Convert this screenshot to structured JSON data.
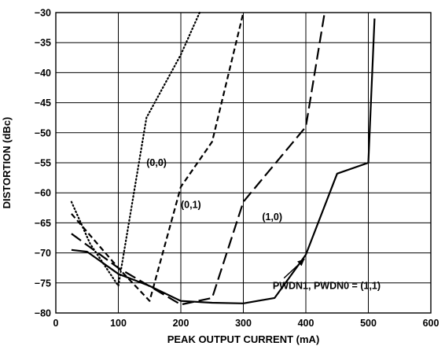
{
  "chart_data": {
    "type": "line",
    "title": "",
    "xlabel": "PEAK OUTPUT CURRENT (mA)",
    "ylabel": "DISTORTION (dBc)",
    "xlim": [
      0,
      600
    ],
    "ylim": [
      -80,
      -30
    ],
    "xticks": [
      0,
      100,
      200,
      300,
      400,
      500,
      600
    ],
    "yticks": [
      -80,
      -75,
      -70,
      -65,
      -60,
      -55,
      -50,
      -45,
      -40,
      -35,
      -30
    ],
    "grid": true,
    "series": [
      {
        "name": "(0,0)",
        "style": "dotted",
        "x": [
          25,
          55,
          100,
          145,
          200,
          230
        ],
        "y": [
          -61.5,
          -68.5,
          -75.5,
          -47.5,
          -37,
          -30
        ]
      },
      {
        "name": "(0,1)",
        "style": "dashed",
        "x": [
          25,
          100,
          150,
          200,
          250,
          300
        ],
        "y": [
          -63.5,
          -72.5,
          -78,
          -59,
          -51.5,
          -30
        ]
      },
      {
        "name": "(1,0)",
        "style": "long-dashed",
        "x": [
          25,
          100,
          200,
          250,
          300,
          400,
          430
        ],
        "y": [
          -66.8,
          -72.5,
          -78.6,
          -77.5,
          -61.5,
          -49,
          -30
        ]
      },
      {
        "name": "PWDN1, PWDN0 = (1,1)",
        "style": "solid",
        "x": [
          25,
          50,
          100,
          150,
          200,
          250,
          300,
          350,
          400,
          450,
          500,
          510
        ],
        "y": [
          -69.5,
          -69.8,
          -73.5,
          -75.5,
          -78,
          -78.3,
          -78.4,
          -77.5,
          -70.3,
          -56.8,
          -55,
          -31
        ]
      }
    ],
    "annotations": [
      {
        "text": "(0,0)",
        "x": 145,
        "y": -55
      },
      {
        "text": "(0,1)",
        "x": 200,
        "y": -62
      },
      {
        "text": "(1,0)",
        "x": 330,
        "y": -64
      },
      {
        "text": "PWDN1, PWDN0 = (1,1)",
        "x": 347,
        "y": -75.5
      }
    ]
  }
}
